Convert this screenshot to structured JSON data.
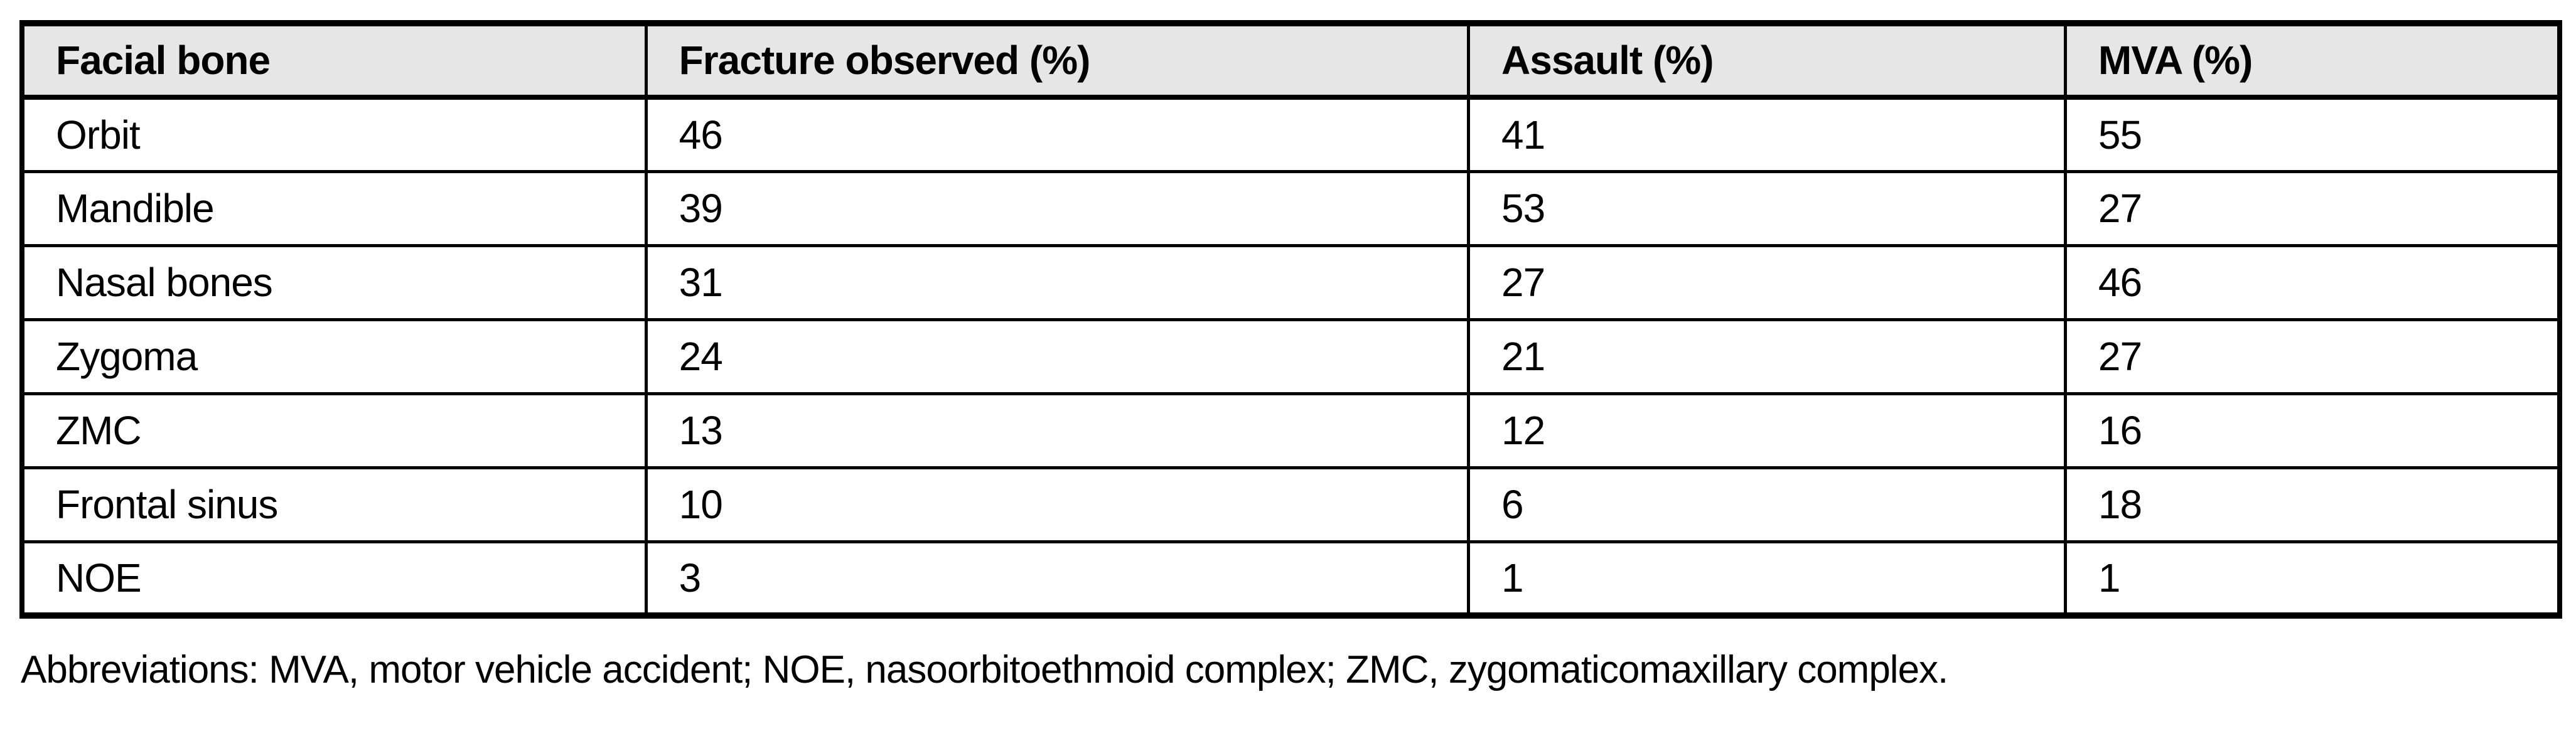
{
  "table": {
    "headers": [
      "Facial bone",
      "Fracture observed (%)",
      "Assault (%)",
      "MVA (%)"
    ],
    "rows": [
      {
        "bone": "Orbit",
        "fracture_observed": "46",
        "assault": "41",
        "mva": "55"
      },
      {
        "bone": "Mandible",
        "fracture_observed": "39",
        "assault": "53",
        "mva": "27"
      },
      {
        "bone": "Nasal bones",
        "fracture_observed": "31",
        "assault": "27",
        "mva": "46"
      },
      {
        "bone": "Zygoma",
        "fracture_observed": "24",
        "assault": "21",
        "mva": "27"
      },
      {
        "bone": "ZMC",
        "fracture_observed": "13",
        "assault": "12",
        "mva": "16"
      },
      {
        "bone": "Frontal sinus",
        "fracture_observed": "10",
        "assault": "6",
        "mva": "18"
      },
      {
        "bone": "NOE",
        "fracture_observed": "3",
        "assault": "1",
        "mva": "1"
      }
    ]
  },
  "footnote": "Abbreviations: MVA, motor vehicle accident; NOE, nasoorbitoethmoid complex; ZMC, zygomaticomaxillary complex.",
  "colors": {
    "header_background": "#e6e6e6",
    "border": "#000000",
    "text": "#000000",
    "page_background": "#ffffff"
  },
  "chart_data": {
    "type": "table",
    "title": "",
    "columns": [
      "Facial bone",
      "Fracture observed (%)",
      "Assault (%)",
      "MVA (%)"
    ],
    "rows": [
      [
        "Orbit",
        46,
        41,
        55
      ],
      [
        "Mandible",
        39,
        53,
        27
      ],
      [
        "Nasal bones",
        31,
        27,
        46
      ],
      [
        "Zygoma",
        24,
        21,
        27
      ],
      [
        "ZMC",
        13,
        12,
        16
      ],
      [
        "Frontal sinus",
        10,
        6,
        18
      ],
      [
        "NOE",
        3,
        1,
        1
      ]
    ]
  }
}
